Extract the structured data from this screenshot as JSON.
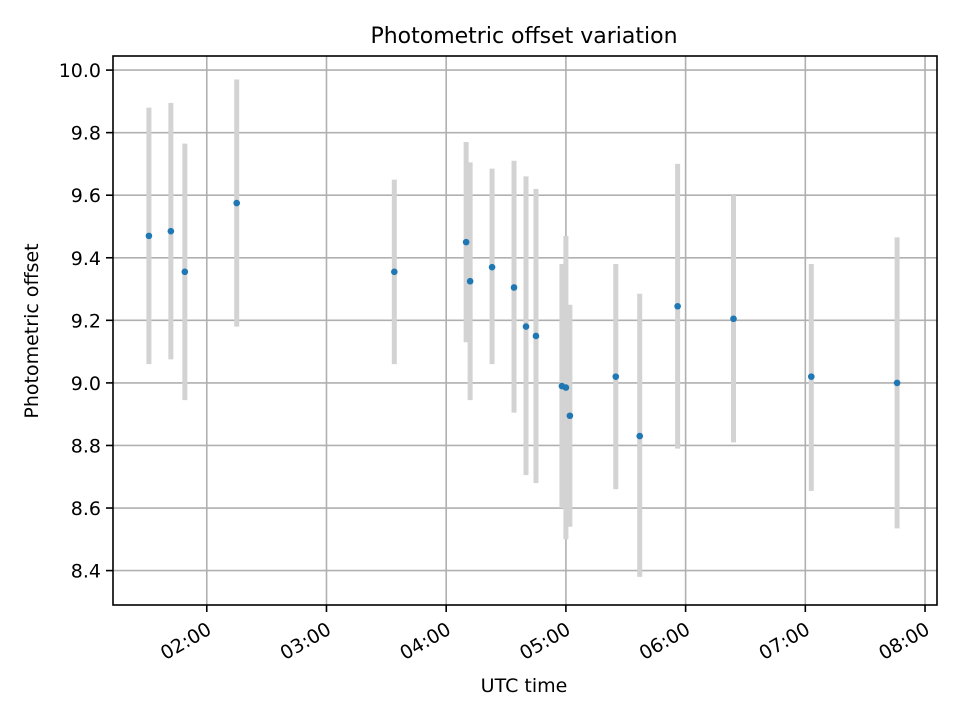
{
  "chart_data": {
    "type": "scatter",
    "title": "Photometric offset variation",
    "xlabel": "UTC time",
    "ylabel": "Photometric offset",
    "x_tick_labels": [
      "02:00",
      "03:00",
      "04:00",
      "05:00",
      "06:00",
      "07:00",
      "08:00"
    ],
    "y_tick_labels": [
      "8.4",
      "8.6",
      "8.8",
      "9.0",
      "9.2",
      "9.4",
      "9.6",
      "9.8",
      "10.0"
    ],
    "xlim": [
      "01:13",
      "08:06"
    ],
    "ylim": [
      8.29,
      10.045
    ],
    "grid": true,
    "marker_color": "#1f77b4",
    "errorbar_color": "#d3d3d3",
    "points": [
      {
        "time": "01:31",
        "value": 9.47,
        "low": 9.06,
        "high": 9.88
      },
      {
        "time": "01:42",
        "value": 9.485,
        "low": 9.075,
        "high": 9.895
      },
      {
        "time": "01:49",
        "value": 9.355,
        "low": 8.945,
        "high": 9.765
      },
      {
        "time": "02:15",
        "value": 9.575,
        "low": 9.18,
        "high": 9.97
      },
      {
        "time": "03:34",
        "value": 9.355,
        "low": 9.06,
        "high": 9.65
      },
      {
        "time": "04:10",
        "value": 9.45,
        "low": 9.13,
        "high": 9.77
      },
      {
        "time": "04:12",
        "value": 9.325,
        "low": 8.945,
        "high": 9.705
      },
      {
        "time": "04:23",
        "value": 9.37,
        "low": 9.06,
        "high": 9.685
      },
      {
        "time": "04:34",
        "value": 9.305,
        "low": 8.905,
        "high": 9.71
      },
      {
        "time": "04:40",
        "value": 9.18,
        "low": 8.705,
        "high": 9.66
      },
      {
        "time": "04:45",
        "value": 9.15,
        "low": 8.68,
        "high": 9.62
      },
      {
        "time": "04:58",
        "value": 8.99,
        "low": 8.6,
        "high": 9.38
      },
      {
        "time": "05:00",
        "value": 8.985,
        "low": 8.5,
        "high": 9.47
      },
      {
        "time": "05:02",
        "value": 8.895,
        "low": 8.54,
        "high": 9.25
      },
      {
        "time": "05:25",
        "value": 9.02,
        "low": 8.66,
        "high": 9.38
      },
      {
        "time": "05:37",
        "value": 8.83,
        "low": 8.38,
        "high": 9.285
      },
      {
        "time": "05:56",
        "value": 9.245,
        "low": 8.79,
        "high": 9.7
      },
      {
        "time": "06:24",
        "value": 9.205,
        "low": 8.81,
        "high": 9.6
      },
      {
        "time": "07:03",
        "value": 9.02,
        "low": 8.655,
        "high": 9.38
      },
      {
        "time": "07:46",
        "value": 9.0,
        "low": 8.535,
        "high": 9.465
      }
    ]
  }
}
